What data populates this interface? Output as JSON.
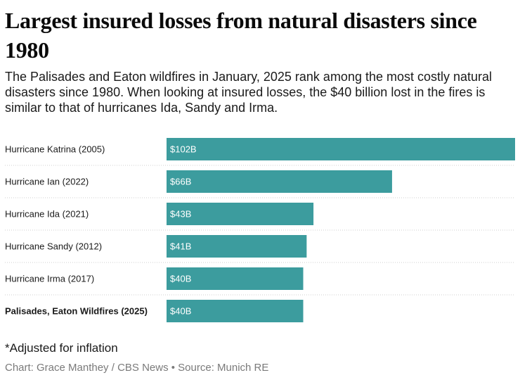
{
  "header": {
    "title": "Largest insured losses from natural disasters since 1980",
    "subtitle": "The Palisades and Eaton wildfires in January, 2025 rank among the most costly natural disasters since 1980. When looking at insured losses, the $40 billion lost in the fires is similar to that of hurricanes Ida, Sandy and Irma."
  },
  "footer": {
    "footnote": "*Adjusted for inflation",
    "credit": "Chart: Grace Manthey / CBS News • Source: Munich RE"
  },
  "colors": {
    "bar": "#3c9c9e"
  },
  "chart_data": {
    "type": "bar",
    "orientation": "horizontal",
    "categories": [
      "Hurricane Katrina (2005)",
      "Hurricane Ian (2022)",
      "Hurricane Ida (2021)",
      "Hurricane Sandy (2012)",
      "Hurricane Irma (2017)",
      "Palisades, Eaton Wildfires (2025)"
    ],
    "values": [
      102,
      66,
      43,
      41,
      40,
      40
    ],
    "value_labels": [
      "$102B",
      "$66B",
      "$43B",
      "$41B",
      "$40B",
      "$40B"
    ],
    "highlighted_category": "Palisades, Eaton Wildfires (2025)",
    "unit": "billion USD",
    "xlim": [
      0,
      102
    ],
    "grid": false,
    "legend": "none"
  }
}
